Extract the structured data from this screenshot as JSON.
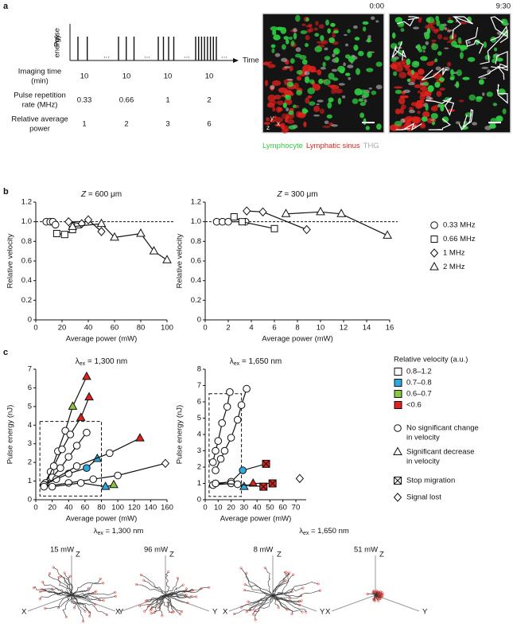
{
  "panel_labels": [
    "a",
    "b",
    "c"
  ],
  "panel_a": {
    "y_axis_label": [
      "Pulse",
      "energy"
    ],
    "x_axis_label": "Time",
    "ellipsis": "...",
    "table": {
      "rows": [
        {
          "label": [
            "Imaging time",
            "(min)"
          ],
          "values": [
            10,
            10,
            10,
            10
          ]
        },
        {
          "label": [
            "Pulse repetition",
            "rate (MHz)"
          ],
          "values": [
            0.33,
            0.66,
            1,
            2
          ]
        },
        {
          "label": [
            "Relative average",
            "power"
          ],
          "values": [
            1,
            2,
            3,
            6
          ]
        }
      ]
    },
    "images": [
      {
        "time": "0:00"
      },
      {
        "time": "9:30"
      }
    ],
    "axis_labels": [
      "y",
      "x",
      "z"
    ],
    "channels": [
      {
        "name": "Lymphocyte",
        "color": "#2ecc40"
      },
      {
        "name": "Lymphatic sinus",
        "color": "#e3211c"
      },
      {
        "name": "THG",
        "color": "#a8a8a8"
      }
    ]
  },
  "chart_data": [
    {
      "type": "line",
      "title": {
        "var": "Z",
        "text": " = 600 μm"
      },
      "x_label": "Average power (mW)",
      "y_label": "Relative velocity",
      "xlim": [
        0,
        100
      ],
      "xticks": [
        0,
        20,
        40,
        60,
        80,
        100
      ],
      "ylim": [
        0,
        1.2
      ],
      "yticks": [
        0,
        0.2,
        0.4,
        0.6,
        0.8,
        {
          "value": 1,
          "label": "1.0"
        },
        1.2
      ],
      "reference_line": 1,
      "series": [
        {
          "name": "0.33 MHz",
          "marker": "circle",
          "x": [
            8,
            11,
            13,
            15
          ],
          "values": [
            1.0,
            1.0,
            1.0,
            0.97
          ]
        },
        {
          "name": "0.66 MHz",
          "marker": "square",
          "x": [
            16,
            22,
            28,
            32
          ],
          "values": [
            0.88,
            0.87,
            0.92,
            0.97
          ]
        },
        {
          "name": "1 MHz",
          "marker": "diamond",
          "x": [
            25,
            35,
            40,
            50
          ],
          "values": [
            1.0,
            0.98,
            1.02,
            0.9
          ]
        },
        {
          "name": "2 MHz",
          "marker": "triangle",
          "x": [
            28,
            50,
            60,
            80,
            90,
            100
          ],
          "values": [
            0.95,
            0.98,
            0.84,
            0.88,
            0.7,
            0.61
          ]
        }
      ]
    },
    {
      "type": "line",
      "title": {
        "var": "Z",
        "text": " = 300 μm"
      },
      "x_label": "Average power (mW)",
      "y_label": "Relative velocity",
      "xlim": [
        0,
        16
      ],
      "xticks": [
        0,
        2,
        4,
        6,
        8,
        10,
        12,
        14,
        16
      ],
      "ylim": [
        0,
        1.2
      ],
      "yticks": [
        0,
        0.2,
        0.4,
        0.6,
        0.8,
        {
          "value": 1,
          "label": "1.0"
        },
        1.2
      ],
      "reference_line": 1,
      "series": [
        {
          "marker": "circle",
          "x": [
            1,
            1.5,
            2,
            3.5
          ],
          "values": [
            1.0,
            1.0,
            1.0,
            1.0
          ]
        },
        {
          "marker": "square",
          "x": [
            2.5,
            3.2,
            6
          ],
          "values": [
            1.05,
            1.0,
            0.93
          ]
        },
        {
          "marker": "diamond",
          "x": [
            3.6,
            5,
            8.8
          ],
          "values": [
            1.11,
            1.1,
            0.92
          ]
        },
        {
          "marker": "triangle",
          "x": [
            7,
            10,
            11.8,
            15.8
          ],
          "values": [
            1.08,
            1.1,
            1.08,
            0.86
          ]
        }
      ]
    },
    {
      "type": "line",
      "title": {
        "symbol": "λ",
        "sub": "ex",
        "text": " = 1,300 nm"
      },
      "x_label": "Average power (mW)",
      "y_label": "Pulse energy (nJ)",
      "xlim": [
        0,
        160
      ],
      "xticks": [
        0,
        20,
        40,
        60,
        80,
        100,
        120,
        140,
        160
      ],
      "ylim": [
        0,
        7
      ],
      "yticks": [
        0,
        1,
        2,
        3,
        4,
        5,
        6,
        7
      ],
      "highlight_box": {
        "x": [
          5,
          80
        ],
        "y": [
          0.2,
          4.2
        ]
      },
      "series": [
        {
          "x": [
            10,
            18,
            27,
            36,
            45,
            62
          ],
          "values": [
            0.8,
            1.5,
            2.6,
            3.7,
            5.0,
            6.6
          ],
          "markers": [
            "circle",
            "circle",
            "circle",
            "circle",
            "triangle",
            "triangle"
          ],
          "fills": [
            "#ffffff",
            "#ffffff",
            "#ffffff",
            "#ffffff",
            "#8dc63f",
            "#e3211c"
          ]
        },
        {
          "x": [
            12,
            22,
            32,
            42,
            55,
            65
          ],
          "values": [
            0.9,
            1.8,
            2.7,
            3.5,
            4.4,
            5.5
          ],
          "markers": [
            "circle",
            "circle",
            "circle",
            "circle",
            "triangle",
            "triangle"
          ],
          "fills": [
            "#ffffff",
            "#ffffff",
            "#ffffff",
            "#ffffff",
            "#e3211c",
            "#e3211c"
          ]
        },
        {
          "x": [
            10,
            20,
            30,
            40,
            50,
            62
          ],
          "values": [
            0.8,
            1.2,
            1.7,
            2.3,
            2.9,
            3.6
          ],
          "markers": [
            "circle",
            "circle",
            "circle",
            "circle",
            "circle",
            "circle"
          ],
          "fills": [
            "#ffffff",
            "#ffffff",
            "#ffffff",
            "#ffffff",
            "#ffffff",
            "#ffffff"
          ]
        },
        {
          "x": [
            10,
            25,
            40,
            62,
            75
          ],
          "values": [
            0.8,
            1.1,
            1.4,
            1.7,
            2.2
          ],
          "markers": [
            "circle",
            "circle",
            "circle",
            "circle",
            "triangle"
          ],
          "fills": [
            "#ffffff",
            "#ffffff",
            "#ffffff",
            "#29abe2",
            "#29abe2"
          ]
        },
        {
          "x": [
            10,
            50,
            90,
            127
          ],
          "values": [
            0.8,
            1.8,
            2.5,
            3.3
          ],
          "markers": [
            "circle",
            "circle",
            "circle",
            "triangle"
          ],
          "fills": [
            "#ffffff",
            "#ffffff",
            "#ffffff",
            "#e3211c"
          ]
        },
        {
          "x": [
            10,
            40,
            70,
            100,
            158
          ],
          "values": [
            0.7,
            0.9,
            1.1,
            1.3,
            1.95
          ],
          "markers": [
            "circle",
            "circle",
            "circle",
            "circle",
            "diamond"
          ],
          "fills": [
            "#ffffff",
            "#ffffff",
            "#ffffff",
            "#ffffff",
            "#ffffff"
          ]
        },
        {
          "x": [
            20,
            55,
            85,
            95
          ],
          "values": [
            0.7,
            0.9,
            0.7,
            0.8
          ],
          "markers": [
            "circle",
            "circle",
            "triangle",
            "triangle"
          ],
          "fills": [
            "#ffffff",
            "#ffffff",
            "#29abe2",
            "#8dc63f"
          ]
        }
      ],
      "legend": {
        "title": "Relative velocity (a.u.)",
        "colors": [
          {
            "label": "0.8–1.2",
            "color": "#ffffff"
          },
          {
            "label": "0.7–0.8",
            "color": "#29abe2"
          },
          {
            "label": "0.6–0.7",
            "color": "#8dc63f"
          },
          {
            "label": "<0.6",
            "color": "#e3211c"
          }
        ],
        "shapes": [
          {
            "label": [
              "No significant change",
              "in velocity"
            ],
            "marker": "circle"
          },
          {
            "label": [
              "Significant decrease",
              "in velocity"
            ],
            "marker": "triangle"
          },
          {
            "label": [
              "Stop migration"
            ],
            "marker": "xsquare"
          },
          {
            "label": [
              "Signal lost"
            ],
            "marker": "diamond"
          }
        ]
      }
    },
    {
      "type": "line",
      "title": {
        "symbol": "λ",
        "sub": "ex",
        "text": " = 1,650 nm"
      },
      "x_label": "Average power (mW)",
      "y_label": "Pulse energy (nJ)",
      "xlim": [
        0,
        78
      ],
      "xticks": [
        0,
        10,
        20,
        30,
        40,
        50,
        60,
        70
      ],
      "ylim": [
        0,
        8
      ],
      "yticks": [
        0,
        1,
        2,
        3,
        4,
        5,
        6,
        7,
        8
      ],
      "highlight_box": {
        "x": [
          3,
          28
        ],
        "y": [
          0.2,
          6.5
        ]
      },
      "series": [
        {
          "x": [
            6,
            8,
            10,
            13,
            17,
            19
          ],
          "values": [
            2.3,
            3.0,
            3.6,
            4.7,
            5.7,
            6.6
          ],
          "markers": [
            "circle",
            "circle",
            "circle",
            "circle",
            "circle",
            "circle"
          ],
          "fills": [
            "#ffffff",
            "#ffffff",
            "#ffffff",
            "#ffffff",
            "#ffffff",
            "#ffffff"
          ]
        },
        {
          "x": [
            8,
            12,
            15,
            20,
            25,
            28,
            32
          ],
          "values": [
            1.8,
            2.5,
            3.0,
            3.8,
            4.9,
            5.8,
            6.8
          ],
          "markers": [
            "circle",
            "circle",
            "circle",
            "circle",
            "circle",
            "circle",
            "circle"
          ],
          "fills": [
            "#ffffff",
            "#ffffff",
            "#ffffff",
            "#ffffff",
            "#ffffff",
            "#ffffff",
            "#ffffff"
          ]
        },
        {
          "x": [
            8,
            20,
            29,
            47
          ],
          "values": [
            1.0,
            1.1,
            1.8,
            2.2
          ],
          "markers": [
            "circle",
            "circle",
            "circle",
            "xsquare"
          ],
          "fills": [
            "#ffffff",
            "#ffffff",
            "#29abe2",
            "#e3211c"
          ]
        },
        {
          "x": [
            6,
            20,
            30,
            37,
            52
          ],
          "values": [
            0.9,
            1.0,
            0.8,
            1.0,
            1.0
          ],
          "markers": [
            "circle",
            "circle",
            "triangle",
            "triangle",
            "xsquare"
          ],
          "fills": [
            "#ffffff",
            "#ffffff",
            "#29abe2",
            "#e3211c",
            "#e3211c"
          ]
        },
        {
          "x": [
            8,
            25,
            45
          ],
          "values": [
            1.0,
            0.95,
            0.8
          ],
          "markers": [
            "circle",
            "circle",
            "xsquare"
          ],
          "fills": [
            "#ffffff",
            "#ffffff",
            "#e3211c"
          ]
        },
        {
          "x": [
            73
          ],
          "values": [
            1.3
          ],
          "markers": [
            "diamond"
          ],
          "fills": [
            "#ffffff"
          ]
        }
      ]
    }
  ],
  "panel_tracks": {
    "groups": [
      {
        "title": {
          "symbol": "λ",
          "sub": "ex",
          "text": " = 1,300 nm"
        },
        "plots": [
          {
            "power": "15 mW"
          },
          {
            "power": "96 mW"
          }
        ]
      },
      {
        "title": {
          "symbol": "λ",
          "sub": "ex",
          "text": " = 1,650 nm"
        },
        "plots": [
          {
            "power": "8 mW"
          },
          {
            "power": "51 mW"
          }
        ]
      }
    ],
    "axis_labels": {
      "x": "X",
      "y": "Y",
      "z": "Z"
    }
  }
}
